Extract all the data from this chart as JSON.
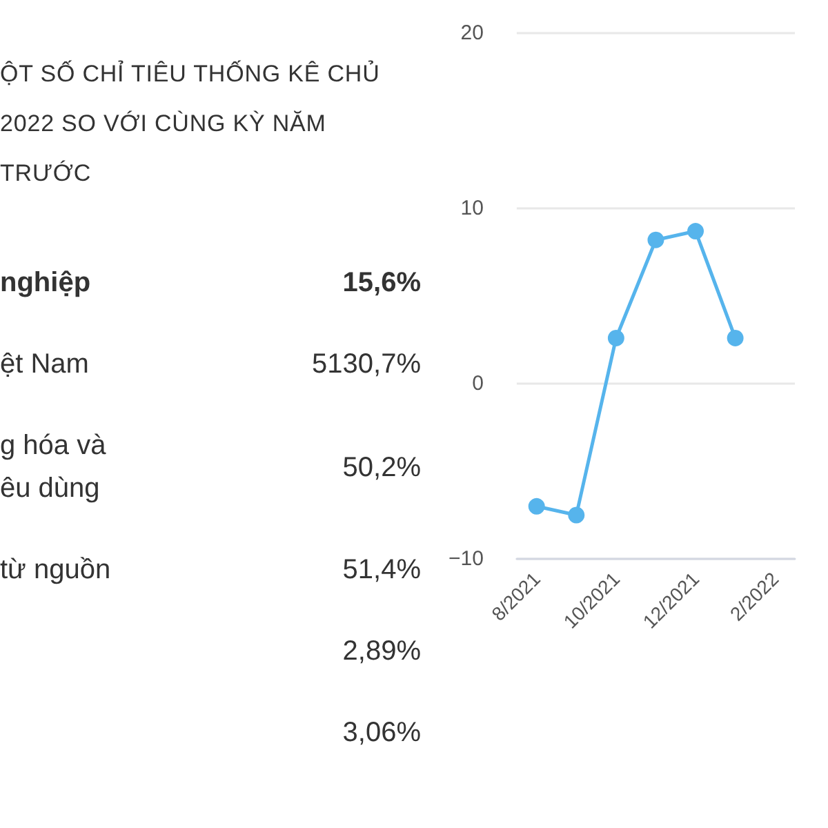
{
  "chart_data": [
    {
      "type": "other",
      "title": "ỘT SỐ CHỈ TIÊU THỐNG KÊ CHỦ\n2022 SO VỚI CÙNG KỲ NĂM\nTRƯỚC",
      "categories": [
        "nghiệp",
        "ệt Nam",
        "g hóa và\nêu dùng",
        "từ nguồn",
        null,
        null
      ],
      "annotations": [
        "15,6%",
        "5130,7%",
        "50,2%",
        "51,4%",
        "2,89%",
        "3,06%"
      ]
    },
    {
      "type": "line",
      "categories": [
        "8/2021",
        null,
        "10/2021",
        null,
        "12/2021",
        null,
        "2/2022"
      ],
      "values": [
        -7.0,
        -7.5,
        2.6,
        8.2,
        8.7,
        2.6,
        null
      ],
      "color": "#56b4ec",
      "ylim": [
        -10,
        20
      ],
      "yticks": [
        -10,
        0,
        10,
        20
      ],
      "grid": "y",
      "marker": "circle"
    }
  ]
}
